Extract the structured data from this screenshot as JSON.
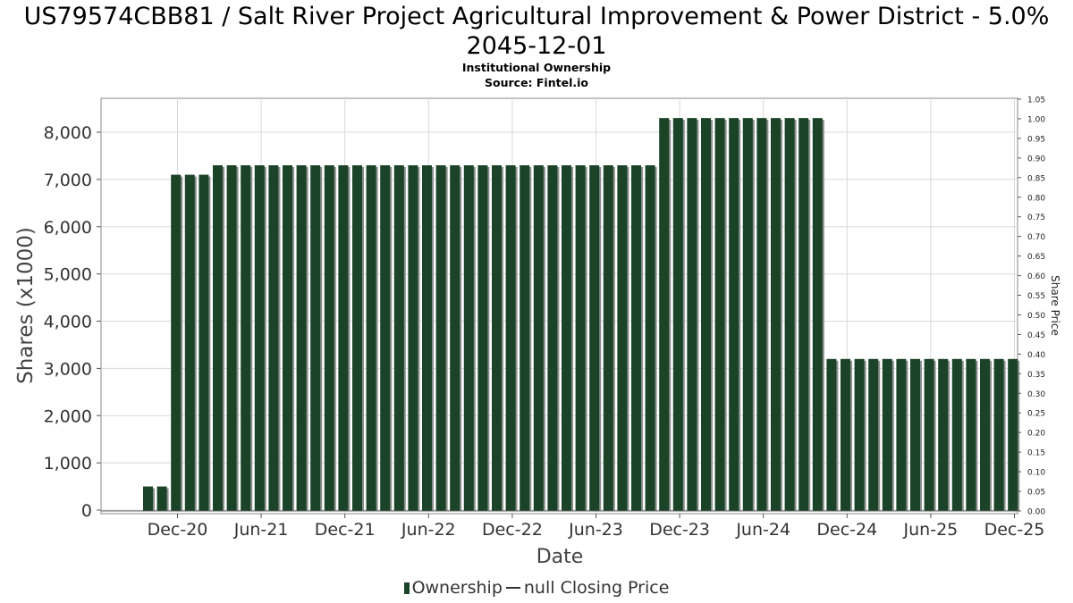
{
  "title": "US79574CBB81 / Salt River Project Agricultural Improvement & Power District - 5.0% 2045-12-01",
  "subtitle1": "Institutional Ownership",
  "subtitle2": "Source: Fintel.io",
  "legend": {
    "ownership": "Ownership",
    "closing": "null Closing Price"
  },
  "colors": {
    "bar": "#1b4327",
    "bar_shadow": "#8a8f8c",
    "grid": "#d9d9d9",
    "axis": "#888888"
  },
  "chart_data": {
    "type": "bar",
    "xlabel": "Date",
    "ylabel": "Shares (x1000)",
    "y2label": "Share Price",
    "ylim": [
      0,
      8700
    ],
    "y_ticks": [
      "0",
      "1,000",
      "2,000",
      "3,000",
      "4,000",
      "5,000",
      "6,000",
      "7,000",
      "8,000"
    ],
    "y2lim": [
      0,
      1.05
    ],
    "y2_ticks": [
      "0.00",
      "0.05",
      "0.10",
      "0.15",
      "0.20",
      "0.25",
      "0.30",
      "0.35",
      "0.40",
      "0.45",
      "0.50",
      "0.55",
      "0.60",
      "0.65",
      "0.70",
      "0.75",
      "0.80",
      "0.85",
      "0.90",
      "0.95",
      "1.00",
      "1.05"
    ],
    "x_ticks": [
      "Dec-20",
      "Jun-21",
      "Dec-21",
      "Jun-22",
      "Dec-22",
      "Jun-23",
      "Dec-23",
      "Jun-24",
      "Dec-24",
      "Jun-25",
      "Dec-25"
    ],
    "grid": true,
    "legend_position": "bottom",
    "series": [
      {
        "name": "Ownership",
        "values": [
          500,
          500,
          7100,
          7100,
          7100,
          7300,
          7300,
          7300,
          7300,
          7300,
          7300,
          7300,
          7300,
          7300,
          7300,
          7300,
          7300,
          7300,
          7300,
          7300,
          7300,
          7300,
          7300,
          7300,
          7300,
          7300,
          7300,
          7300,
          7300,
          7300,
          7300,
          7300,
          7300,
          7300,
          7300,
          7300,
          7300,
          8300,
          8300,
          8300,
          8300,
          8300,
          8300,
          8300,
          8300,
          8300,
          8300,
          8300,
          8300,
          3200,
          3200,
          3200,
          3200,
          3200,
          3200,
          3200,
          3200,
          3200,
          3200,
          3200,
          3200,
          3200,
          3200
        ]
      }
    ]
  }
}
